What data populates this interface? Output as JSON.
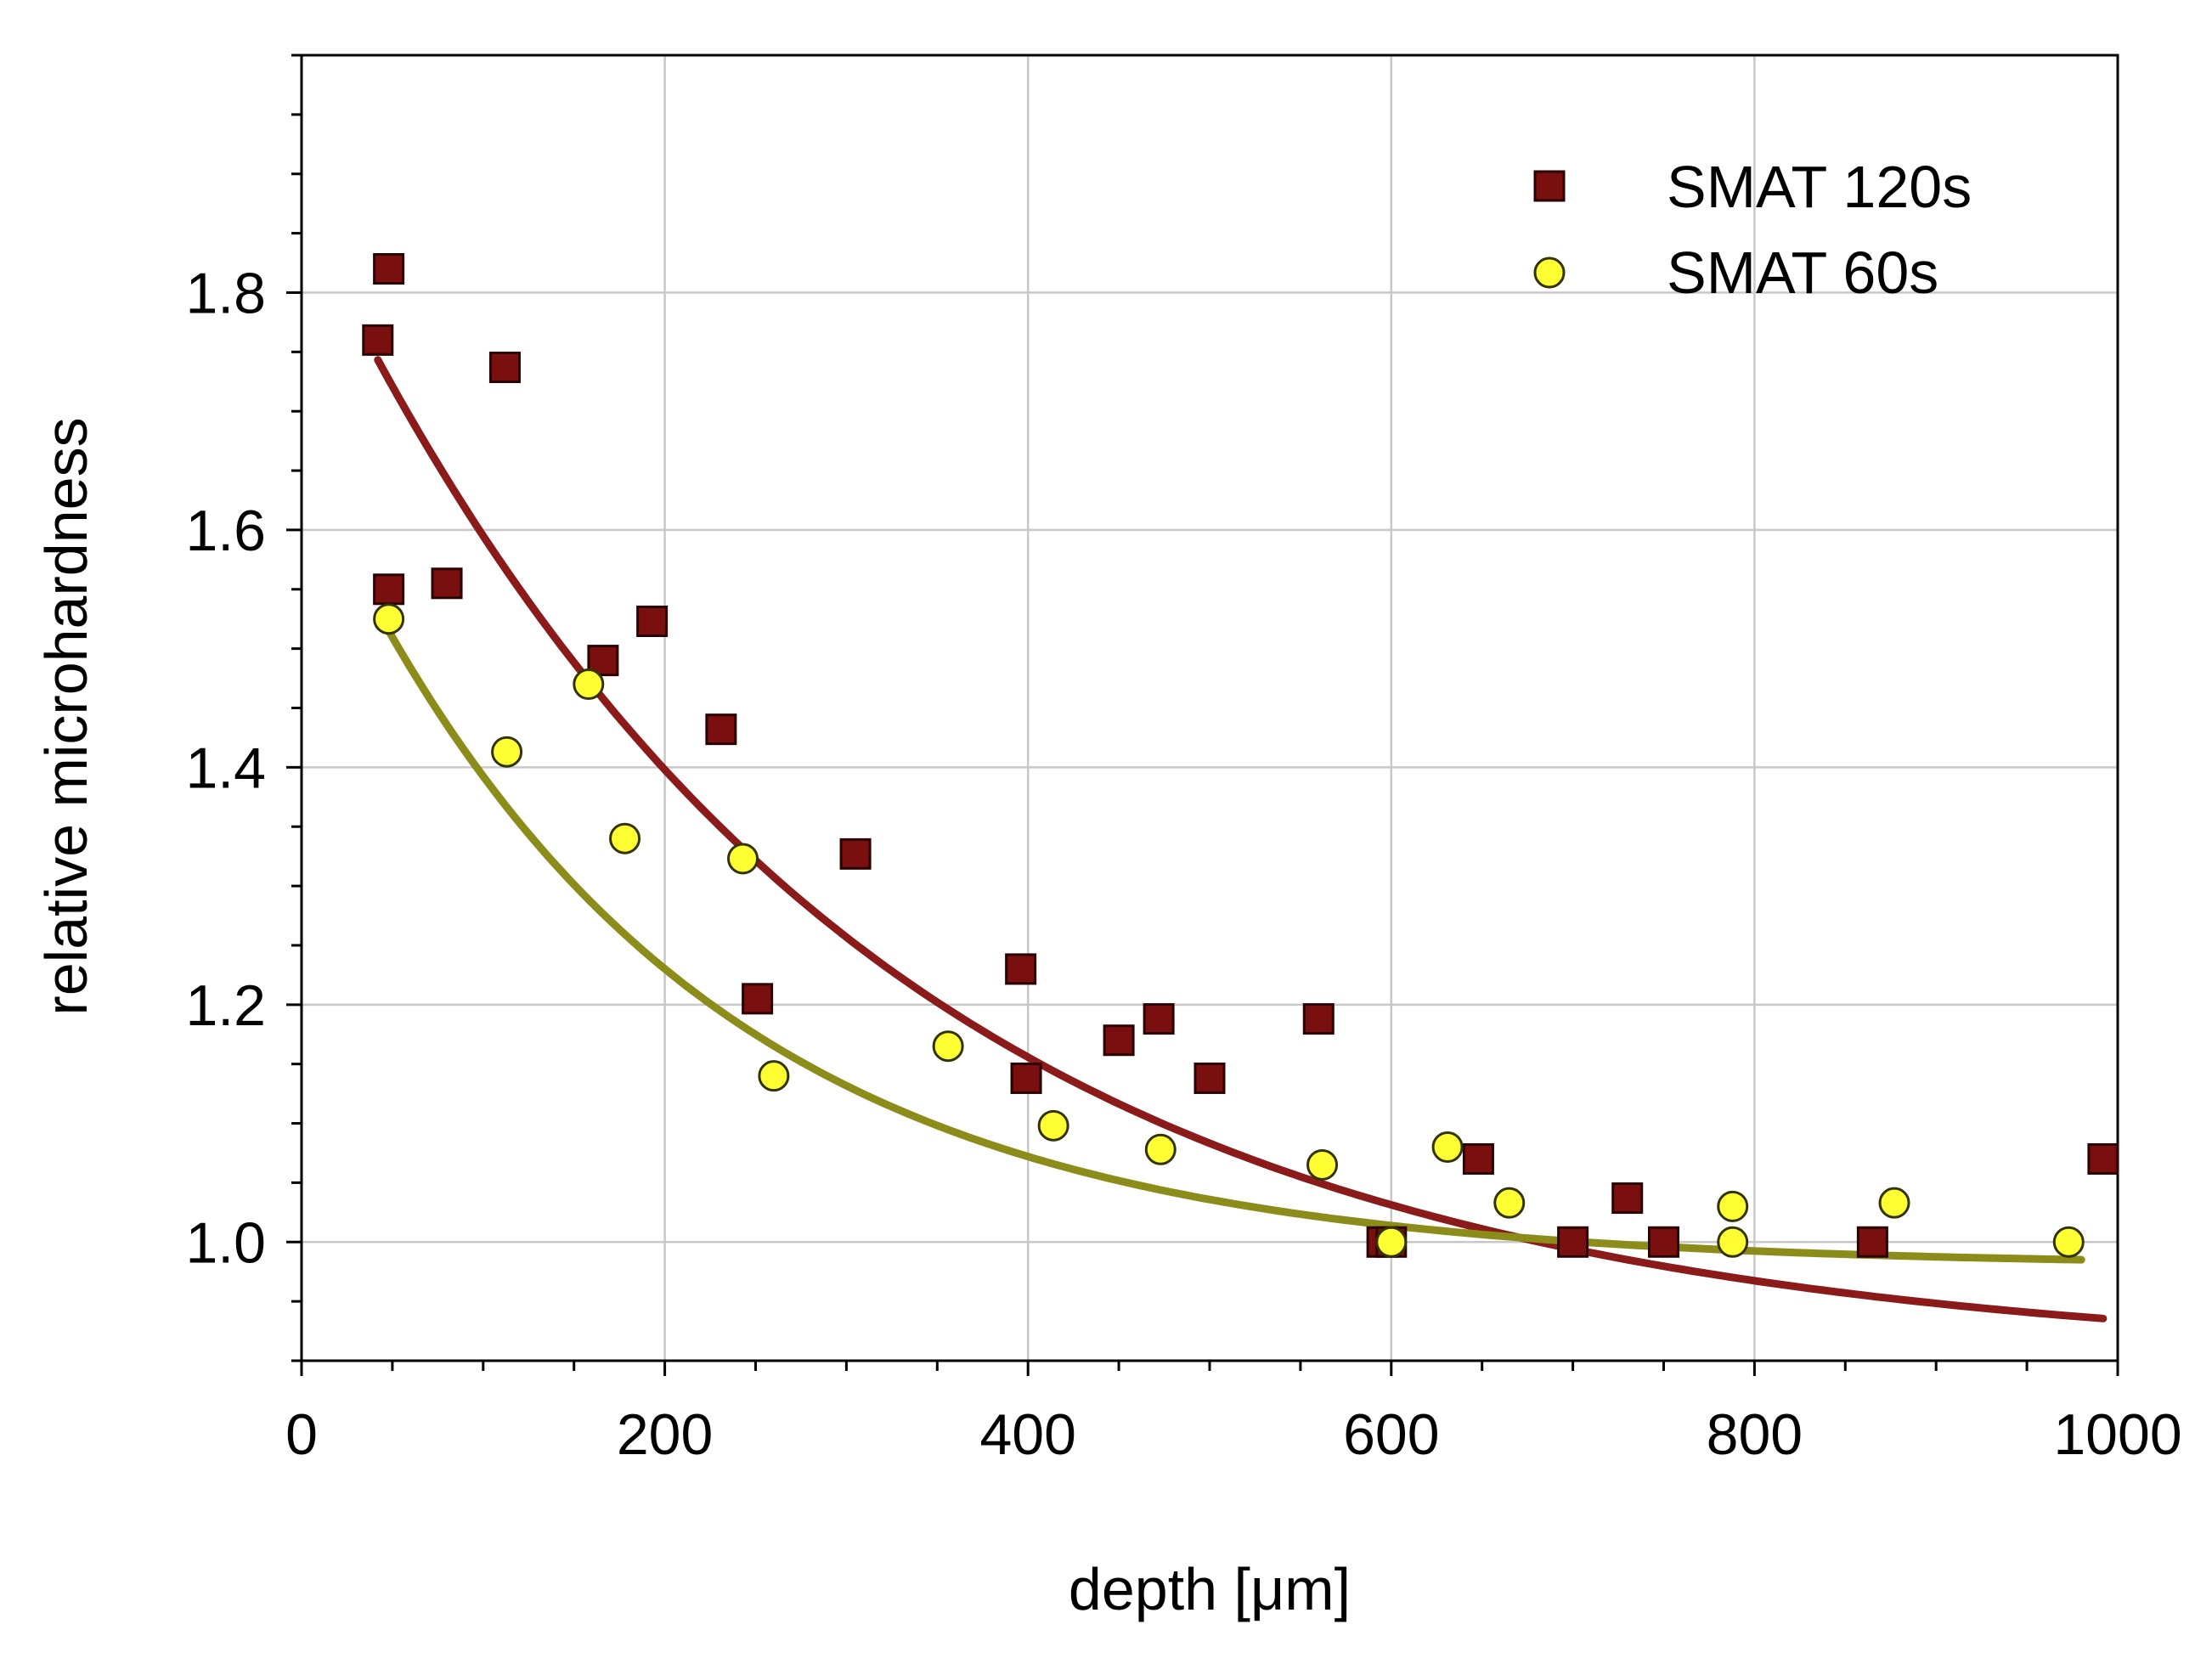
{
  "chart_data": {
    "type": "scatter",
    "title": "",
    "xlabel": "depth [μm]",
    "ylabel": "relative microhardness",
    "xlim": [
      0,
      1000
    ],
    "ylim": [
      0.9,
      2.0
    ],
    "x_ticks": [
      "0",
      "200",
      "400",
      "600",
      "800",
      "1000"
    ],
    "y_ticks": [
      "1.0",
      "1.2",
      "1.4",
      "1.6",
      "1.8"
    ],
    "x_tick_values": [
      0,
      200,
      400,
      600,
      800,
      1000
    ],
    "y_tick_values": [
      1.0,
      1.2,
      1.4,
      1.6,
      1.8
    ],
    "grid": true,
    "legend_position": "top-right",
    "series": [
      {
        "name": "SMAT 120s",
        "marker": "square",
        "color": "#7a0f0f",
        "edge_color": "#2a0000",
        "fit_color": "#8b1a1a",
        "points": [
          [
            42,
            1.76
          ],
          [
            48,
            1.82
          ],
          [
            48,
            1.55
          ],
          [
            80,
            1.555
          ],
          [
            112,
            1.737
          ],
          [
            166,
            1.49
          ],
          [
            193,
            1.523
          ],
          [
            231,
            1.432
          ],
          [
            251,
            1.205
          ],
          [
            305,
            1.327
          ],
          [
            396,
            1.23
          ],
          [
            399,
            1.138
          ],
          [
            450,
            1.17
          ],
          [
            472,
            1.188
          ],
          [
            500,
            1.138
          ],
          [
            560,
            1.188
          ],
          [
            595,
            1.0
          ],
          [
            600,
            1.0
          ],
          [
            648,
            1.07
          ],
          [
            700,
            1.0
          ],
          [
            730,
            1.037
          ],
          [
            750,
            1.0
          ],
          [
            865,
            1.0
          ],
          [
            992,
            1.07
          ]
        ],
        "fit": {
          "model": "a + b*exp(-x/t)",
          "a": 0.9,
          "b": 0.97,
          "t": 300,
          "x_range": [
            42,
            992
          ]
        }
      },
      {
        "name": "SMAT 60s",
        "marker": "circle",
        "color": "#ffff33",
        "edge_color": "#333300",
        "fit_color": "#8c8c1a",
        "points": [
          [
            48,
            1.525
          ],
          [
            113,
            1.413
          ],
          [
            158,
            1.47
          ],
          [
            178,
            1.34
          ],
          [
            243,
            1.323
          ],
          [
            260,
            1.14
          ],
          [
            356,
            1.165
          ],
          [
            414,
            1.098
          ],
          [
            473,
            1.078
          ],
          [
            562,
            1.065
          ],
          [
            600,
            1.0
          ],
          [
            631,
            1.08
          ],
          [
            665,
            1.033
          ],
          [
            788,
            1.0
          ],
          [
            788,
            1.03
          ],
          [
            877,
            1.033
          ],
          [
            973,
            1.0
          ]
        ],
        "fit": {
          "model": "a + b*exp(-x/t)",
          "a": 0.98,
          "b": 0.68,
          "t": 200,
          "x_range": [
            48,
            980
          ]
        }
      }
    ]
  }
}
